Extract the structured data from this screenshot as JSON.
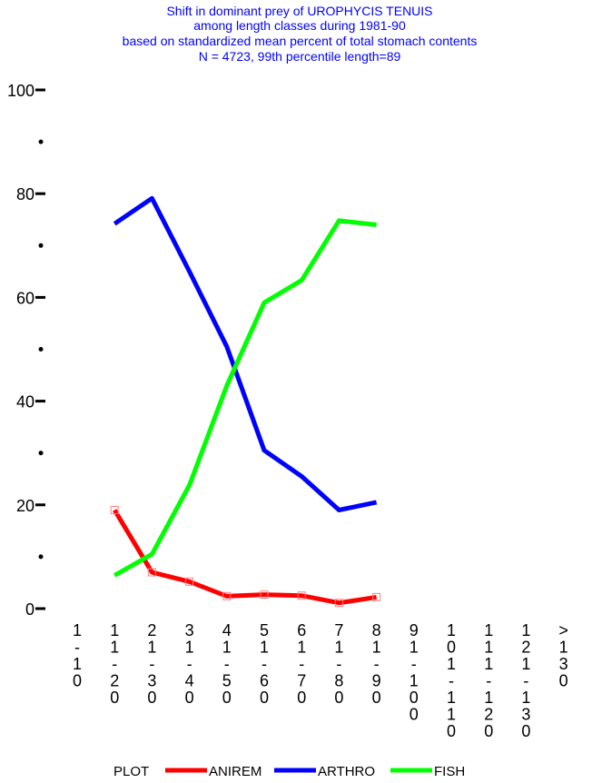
{
  "chart_data": {
    "type": "line",
    "title": [
      "Shift in dominant prey of UROPHYCIS TENUIS",
      "among length classes during 1981-90",
      "based on standardized mean percent of  total stomach contents",
      "N = 4723, 99th percentile  length=89"
    ],
    "categories": [
      "1-10",
      "11-20",
      "21-30",
      "31-40",
      "41-50",
      "51-60",
      "61-70",
      "71-80",
      "81-90",
      "91-100",
      "101-110",
      "111-120",
      "121-130",
      ">130"
    ],
    "series": [
      {
        "name": "ANIREM",
        "color": "#ff0000",
        "values": [
          null,
          19,
          7,
          5.2,
          2.4,
          2.7,
          2.5,
          1.1,
          2.2,
          null,
          null,
          null,
          null,
          null
        ]
      },
      {
        "name": "ARTHRO",
        "color": "#0000ff",
        "values": [
          null,
          74.2,
          79.1,
          65,
          50.5,
          30.5,
          25.5,
          19,
          20.5,
          null,
          null,
          null,
          null,
          null
        ]
      },
      {
        "name": "FISH",
        "color": "#00ff00",
        "values": [
          null,
          6.4,
          10.5,
          23.8,
          43,
          59,
          63.3,
          74.8,
          74,
          null,
          null,
          null,
          null,
          null
        ]
      }
    ],
    "legend_title": "PLOT",
    "ylim": [
      0,
      100
    ],
    "yticks": [
      0,
      20,
      40,
      60,
      80,
      100
    ],
    "yminorticks": [
      10,
      30,
      50,
      70,
      90
    ],
    "markers": {
      "ANIREM": "square"
    }
  }
}
